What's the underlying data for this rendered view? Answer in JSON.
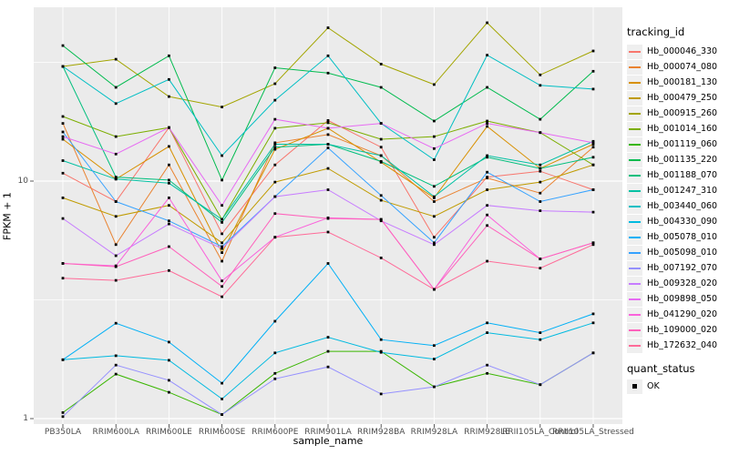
{
  "chart_data": {
    "type": "line",
    "title": "",
    "xlabel": "sample_name",
    "ylabel": "FPKM + 1",
    "y_scale": "log10",
    "ylim": [
      0.93,
      54
    ],
    "y_ticks": [
      1,
      10
    ],
    "y_minor_ticks": [
      3.1623,
      31.623
    ],
    "grid": "white major+minor on gray panel",
    "legend_position": "right",
    "legend_title": "tracking_id",
    "point_shape": "small black square",
    "categories": [
      "PB350LA",
      "RRIM600LA",
      "RRIM600LE",
      "RRIM600SE",
      "RRIM600PE",
      "RRIM901LA",
      "RRIM928BA",
      "RRIM928LA",
      "RRIM928LE",
      "RRII105LA_Control",
      "RRII105LA_Stressed"
    ],
    "series": [
      {
        "name": "Hb_000046_330",
        "color": "#F8766D",
        "values": [
          10.8,
          8.2,
          16.8,
          6.0,
          11.7,
          18.0,
          13.9,
          5.8,
          10.4,
          11.0,
          9.2
        ]
      },
      {
        "name": "Hb_000074_080",
        "color": "#EA8331",
        "values": [
          17.5,
          5.4,
          11.7,
          4.6,
          14.5,
          15.7,
          12.8,
          8.2,
          10.3,
          8.9,
          13.9
        ]
      },
      {
        "name": "Hb_000181_130",
        "color": "#D89000",
        "values": [
          15.0,
          10.2,
          14.0,
          5.0,
          13.6,
          16.7,
          12.0,
          8.5,
          17.0,
          11.3,
          14.3
        ]
      },
      {
        "name": "Hb_000479_250",
        "color": "#C09B00",
        "values": [
          8.5,
          7.1,
          7.9,
          5.5,
          9.9,
          11.3,
          8.3,
          7.1,
          9.2,
          9.9,
          11.7
        ]
      },
      {
        "name": "Hb_000915_260",
        "color": "#A3A500",
        "values": [
          30.4,
          32.6,
          22.7,
          20.5,
          25.7,
          44.2,
          31.1,
          25.5,
          46.4,
          28.0,
          35.3
        ]
      },
      {
        "name": "Hb_001014_160",
        "color": "#7CAE00",
        "values": [
          18.7,
          15.4,
          16.8,
          6.9,
          16.7,
          17.6,
          15.0,
          15.4,
          17.9,
          16.0,
          11.7
        ]
      },
      {
        "name": "Hb_001119_060",
        "color": "#39B600",
        "values": [
          1.06,
          1.54,
          1.29,
          1.04,
          1.55,
          1.92,
          1.92,
          1.36,
          1.55,
          1.39,
          1.89
        ]
      },
      {
        "name": "Hb_001135_220",
        "color": "#00BB4E",
        "values": [
          37.2,
          24.8,
          33.7,
          10.1,
          30.0,
          28.5,
          24.8,
          17.9,
          24.8,
          18.2,
          29.0
        ]
      },
      {
        "name": "Hb_001188_070",
        "color": "#00BF7D",
        "values": [
          30.4,
          10.4,
          10.1,
          6.7,
          13.9,
          14.3,
          12.1,
          9.5,
          12.6,
          11.3,
          12.6
        ]
      },
      {
        "name": "Hb_001247_310",
        "color": "#00C1A3",
        "values": [
          12.2,
          10.2,
          9.8,
          6.9,
          14.3,
          14.3,
          12.8,
          8.6,
          12.8,
          11.7,
          14.7
        ]
      },
      {
        "name": "Hb_003440_060",
        "color": "#00BFC4",
        "values": [
          30.4,
          21.2,
          26.8,
          12.8,
          21.9,
          33.7,
          17.5,
          12.3,
          33.9,
          25.3,
          24.4
        ]
      },
      {
        "name": "Hb_004330_090",
        "color": "#00BAE0",
        "values": [
          1.77,
          1.84,
          1.76,
          1.21,
          1.89,
          2.2,
          1.9,
          1.78,
          2.3,
          2.15,
          2.53
        ]
      },
      {
        "name": "Hb_005078_010",
        "color": "#00B0F6",
        "values": [
          1.77,
          2.52,
          2.1,
          1.41,
          2.57,
          4.5,
          2.15,
          2.03,
          2.53,
          2.3,
          2.76
        ]
      },
      {
        "name": "Hb_005098_010",
        "color": "#35A2FF",
        "values": [
          16.1,
          8.2,
          6.8,
          5.3,
          8.6,
          13.8,
          8.7,
          5.5,
          10.9,
          8.2,
          9.2
        ]
      },
      {
        "name": "Hb_007192_070",
        "color": "#9590FF",
        "values": [
          1.02,
          1.68,
          1.45,
          1.04,
          1.47,
          1.65,
          1.27,
          1.36,
          1.68,
          1.39,
          1.89
        ]
      },
      {
        "name": "Hb_009328_020",
        "color": "#C77CFF",
        "values": [
          6.96,
          4.85,
          6.6,
          5.2,
          8.6,
          9.2,
          6.8,
          5.4,
          7.9,
          7.5,
          7.4
        ]
      },
      {
        "name": "Hb_009898_050",
        "color": "#E76BF3",
        "values": [
          15.4,
          13.0,
          16.8,
          7.9,
          18.2,
          16.7,
          17.5,
          13.7,
          17.5,
          16.0,
          14.5
        ]
      },
      {
        "name": "Hb_041290_020",
        "color": "#FA62DB",
        "values": [
          4.5,
          4.4,
          8.5,
          3.8,
          5.8,
          7.0,
          6.9,
          3.5,
          7.2,
          4.7,
          5.5
        ]
      },
      {
        "name": "Hb_109000_020",
        "color": "#FF62BC",
        "values": [
          4.5,
          4.36,
          5.3,
          3.6,
          7.3,
          6.96,
          6.9,
          3.5,
          6.5,
          4.7,
          5.5
        ]
      },
      {
        "name": "Hb_172632_040",
        "color": "#FF6A98",
        "values": [
          3.9,
          3.82,
          4.2,
          3.26,
          5.8,
          6.1,
          4.75,
          3.5,
          4.6,
          4.3,
          5.4
        ]
      }
    ],
    "legend2": {
      "title": "quant_status",
      "items": [
        "OK"
      ]
    }
  },
  "style": {
    "panel_bg": "#EBEBEB",
    "grid_color": "#FFFFFF",
    "tick_color": "#333333",
    "tick_label_color": "#4d4d4d",
    "point_color": "#000000",
    "legend_key_bg": "#EFEFEF"
  }
}
